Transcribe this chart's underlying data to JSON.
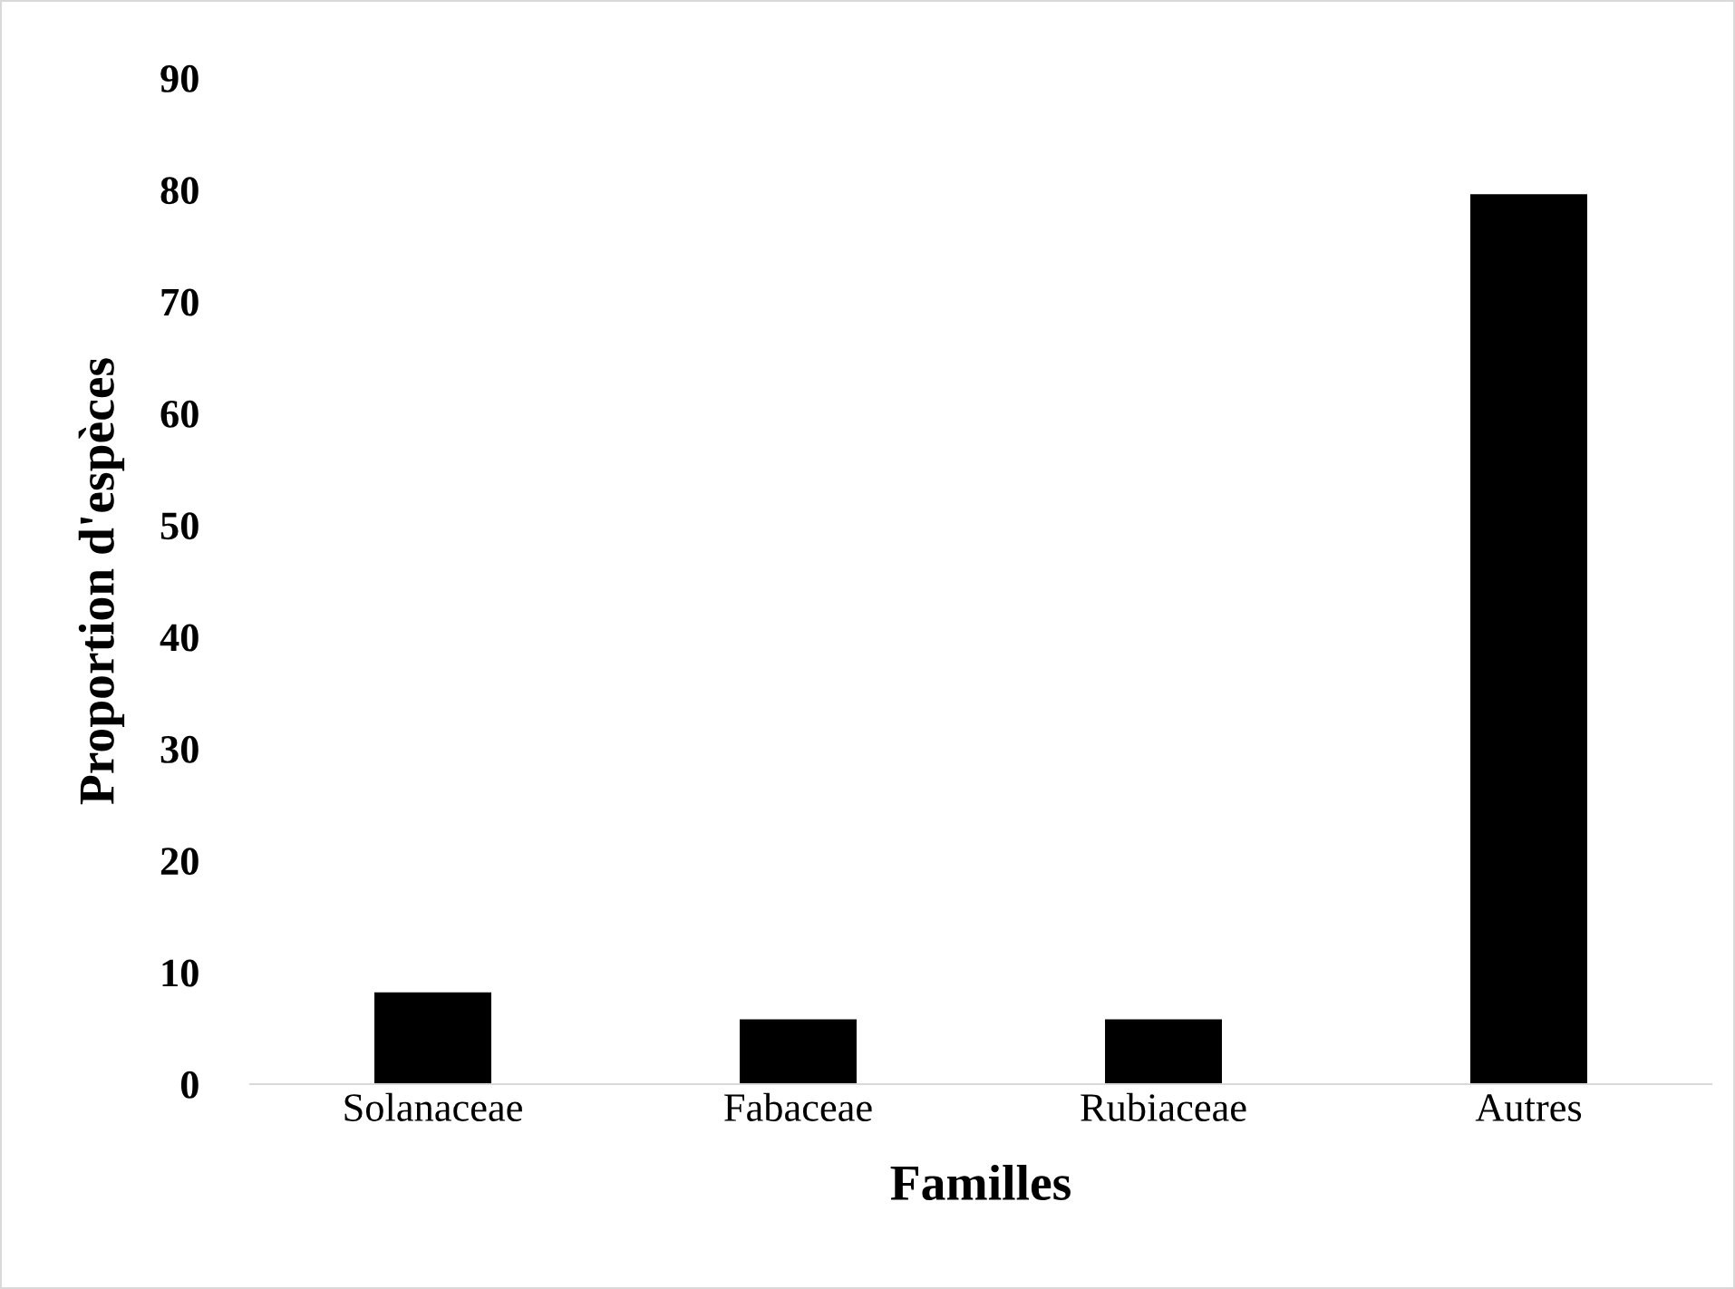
{
  "chart_data": {
    "type": "bar",
    "xlabel": "Familles",
    "ylabel": "Proportion d'espèces",
    "categories": [
      "Solanaceae",
      "Fabaceae",
      "Rubiaceae",
      "Autres"
    ],
    "values": [
      8.2,
      5.8,
      5.8,
      79.6
    ],
    "color": "#000000",
    "ylim": [
      0,
      90
    ],
    "yticks": [
      0,
      10,
      20,
      30,
      40,
      50,
      60,
      70,
      80,
      90
    ],
    "grid": false,
    "legend": false
  }
}
